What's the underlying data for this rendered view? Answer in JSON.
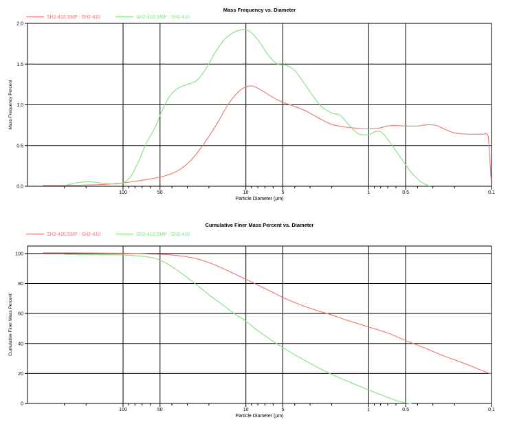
{
  "chart_data": [
    {
      "type": "line",
      "title": "Mass Frequency vs. Diameter",
      "xlabel": "Particle Diameter (µm)",
      "ylabel": "Mass Frequency Percent",
      "x_scale": "log",
      "x_reversed": true,
      "xlim": [
        600,
        0.1
      ],
      "ylim": [
        0,
        2.0
      ],
      "x_tick_labels": [
        {
          "value": 100,
          "label": "100"
        },
        {
          "value": 50,
          "label": "50"
        },
        {
          "value": 10,
          "label": "10"
        },
        {
          "value": 5,
          "label": "5"
        },
        {
          "value": 1,
          "label": "1"
        },
        {
          "value": 0.5,
          "label": "0.5"
        },
        {
          "value": 0.1,
          "label": "0.1"
        }
      ],
      "y_tick_labels": [
        {
          "value": 0,
          "label": "0.0"
        },
        {
          "value": 0.5,
          "label": "0.5"
        },
        {
          "value": 1.0,
          "label": "1.0"
        },
        {
          "value": 1.5,
          "label": "1.5"
        },
        {
          "value": 2.0,
          "label": "2.0"
        }
      ],
      "grid": true,
      "legend_position": "top-left",
      "series": [
        {
          "name": "SH2-410.SMP : SH2-410",
          "color": "#f07070",
          "points": [
            [
              450,
              0.01
            ],
            [
              300,
              0.01
            ],
            [
              200,
              0.015
            ],
            [
              150,
              0.02
            ],
            [
              110,
              0.035
            ],
            [
              80,
              0.06
            ],
            [
              60,
              0.09
            ],
            [
              45,
              0.13
            ],
            [
              35,
              0.2
            ],
            [
              28,
              0.32
            ],
            [
              22,
              0.52
            ],
            [
              17,
              0.78
            ],
            [
              14,
              1.0
            ],
            [
              11.5,
              1.16
            ],
            [
              10,
              1.22
            ],
            [
              8.8,
              1.23
            ],
            [
              7.5,
              1.18
            ],
            [
              6,
              1.09
            ],
            [
              5,
              1.03
            ],
            [
              4,
              0.98
            ],
            [
              3.2,
              0.92
            ],
            [
              2.5,
              0.83
            ],
            [
              2,
              0.76
            ],
            [
              1.6,
              0.73
            ],
            [
              1.2,
              0.71
            ],
            [
              1,
              0.705
            ],
            [
              0.85,
              0.71
            ],
            [
              0.7,
              0.74
            ],
            [
              0.6,
              0.745
            ],
            [
              0.5,
              0.74
            ],
            [
              0.4,
              0.74
            ],
            [
              0.33,
              0.755
            ],
            [
              0.28,
              0.745
            ],
            [
              0.24,
              0.7
            ],
            [
              0.2,
              0.655
            ],
            [
              0.16,
              0.64
            ],
            [
              0.12,
              0.64
            ],
            [
              0.108,
              0.635
            ],
            [
              0.105,
              0.52
            ],
            [
              0.101,
              0.1
            ]
          ]
        },
        {
          "name": "SH2-410.SMP : SH2-410",
          "color": "#80e080",
          "points": [
            [
              300,
              0.01
            ],
            [
              260,
              0.03
            ],
            [
              220,
              0.05
            ],
            [
              190,
              0.055
            ],
            [
              160,
              0.045
            ],
            [
              130,
              0.03
            ],
            [
              110,
              0.03
            ],
            [
              95,
              0.06
            ],
            [
              85,
              0.14
            ],
            [
              75,
              0.3
            ],
            [
              65,
              0.52
            ],
            [
              55,
              0.72
            ],
            [
              48,
              0.93
            ],
            [
              42,
              1.1
            ],
            [
              36,
              1.2
            ],
            [
              30,
              1.25
            ],
            [
              25,
              1.3
            ],
            [
              21,
              1.45
            ],
            [
              18,
              1.63
            ],
            [
              15,
              1.8
            ],
            [
              12.5,
              1.89
            ],
            [
              10.8,
              1.92
            ],
            [
              9.5,
              1.91
            ],
            [
              8,
              1.8
            ],
            [
              6.5,
              1.6
            ],
            [
              5.5,
              1.5
            ],
            [
              4.8,
              1.49
            ],
            [
              4,
              1.42
            ],
            [
              3.2,
              1.22
            ],
            [
              2.5,
              1.0
            ],
            [
              2,
              0.9
            ],
            [
              1.7,
              0.87
            ],
            [
              1.4,
              0.73
            ],
            [
              1.2,
              0.64
            ],
            [
              1.0,
              0.635
            ],
            [
              0.88,
              0.67
            ],
            [
              0.78,
              0.66
            ],
            [
              0.65,
              0.51
            ],
            [
              0.52,
              0.3
            ],
            [
              0.45,
              0.17
            ],
            [
              0.38,
              0.06
            ],
            [
              0.32,
              0.0
            ]
          ]
        }
      ]
    },
    {
      "type": "line",
      "title": "Cumulative Finer Mass Percent vs. Diameter",
      "xlabel": "Particle Diameter (µm)",
      "ylabel": "Cumulative Finer Mass Percent",
      "x_scale": "log",
      "x_reversed": true,
      "xlim": [
        600,
        0.1
      ],
      "ylim": [
        0,
        105
      ],
      "x_tick_labels": [
        {
          "value": 100,
          "label": "100"
        },
        {
          "value": 50,
          "label": "50"
        },
        {
          "value": 10,
          "label": "10"
        },
        {
          "value": 5,
          "label": "5"
        },
        {
          "value": 1,
          "label": "1"
        },
        {
          "value": 0.5,
          "label": "0.5"
        },
        {
          "value": 0.1,
          "label": "0.1"
        }
      ],
      "y_tick_labels": [
        {
          "value": 0,
          "label": "0"
        },
        {
          "value": 20,
          "label": "20"
        },
        {
          "value": 40,
          "label": "40"
        },
        {
          "value": 60,
          "label": "60"
        },
        {
          "value": 80,
          "label": "80"
        },
        {
          "value": 100,
          "label": "100"
        }
      ],
      "grid": true,
      "legend_position": "top-left",
      "series": [
        {
          "name": "SH2-410.SMP : SH2-410",
          "color": "#f07070",
          "points": [
            [
              450,
              100.5
            ],
            [
              200,
              100.4
            ],
            [
              100,
              100.2
            ],
            [
              60,
              99.7
            ],
            [
              45,
              99.3
            ],
            [
              35,
              98.5
            ],
            [
              25,
              96.5
            ],
            [
              18,
              92.5
            ],
            [
              14,
              88.5
            ],
            [
              11,
              84.5
            ],
            [
              8,
              79
            ],
            [
              6,
              74
            ],
            [
              4.5,
              69
            ],
            [
              3,
              63.5
            ],
            [
              2,
              59
            ],
            [
              1.5,
              55.5
            ],
            [
              1,
              51
            ],
            [
              0.7,
              47
            ],
            [
              0.5,
              42
            ],
            [
              0.35,
              37
            ],
            [
              0.25,
              32
            ],
            [
              0.17,
              27
            ],
            [
              0.12,
              22
            ],
            [
              0.1,
              19.5
            ]
          ]
        },
        {
          "name": "SH2-410.SMP : SH2-410",
          "color": "#80e080",
          "points": [
            [
              300,
              99.5
            ],
            [
              200,
              99.4
            ],
            [
              120,
              99.2
            ],
            [
              90,
              98.9
            ],
            [
              70,
              98.2
            ],
            [
              55,
              96.8
            ],
            [
              45,
              93.8
            ],
            [
              35,
              88
            ],
            [
              26,
              80
            ],
            [
              20,
              72.5
            ],
            [
              15,
              65
            ],
            [
              12,
              59
            ],
            [
              10,
              55
            ],
            [
              8,
              48.5
            ],
            [
              6,
              41.5
            ],
            [
              4.5,
              35
            ],
            [
              3.2,
              28
            ],
            [
              2.2,
              21
            ],
            [
              1.5,
              15
            ],
            [
              1,
              9
            ],
            [
              0.75,
              5
            ],
            [
              0.6,
              2
            ],
            [
              0.5,
              0.4
            ],
            [
              0.45,
              0
            ]
          ]
        }
      ]
    }
  ]
}
